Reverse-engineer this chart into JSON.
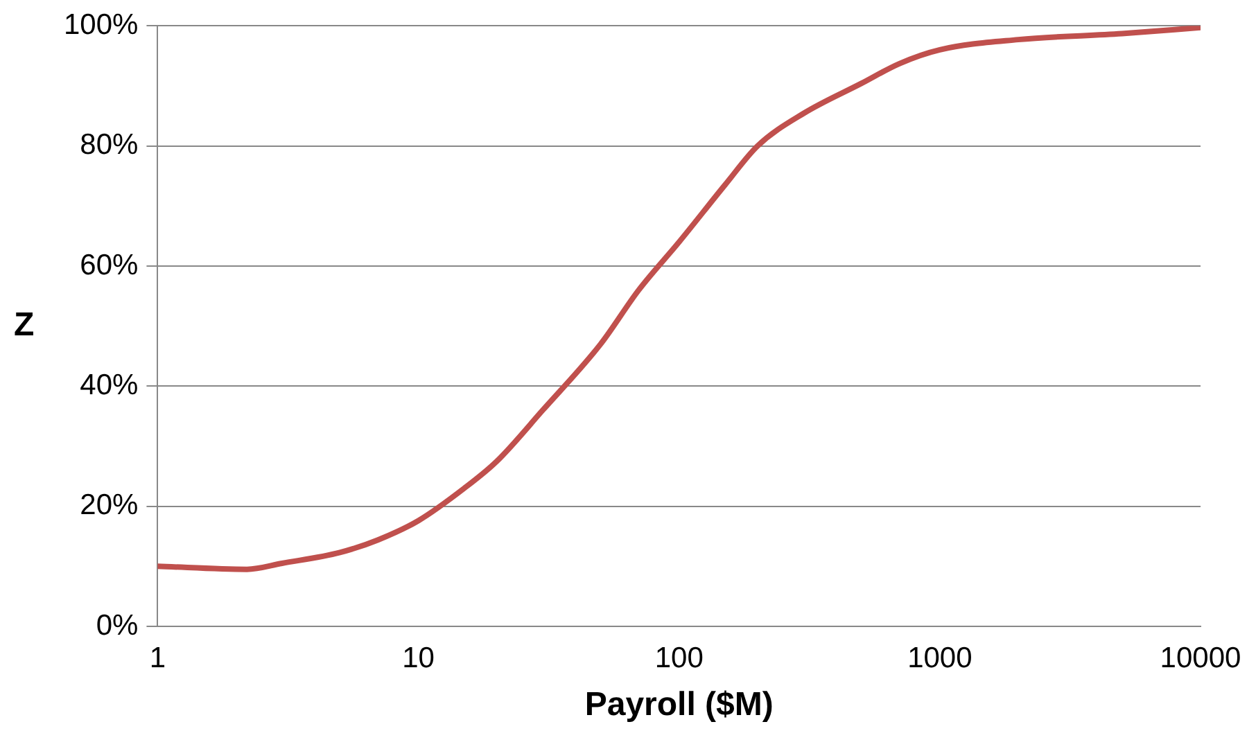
{
  "chart_data": {
    "type": "line",
    "xlabel": "Payroll ($M)",
    "ylabel": "Z",
    "log": "x",
    "x": [
      1,
      2.2,
      3,
      5,
      7,
      10,
      15,
      20,
      30,
      50,
      70,
      100,
      150,
      200,
      300,
      500,
      700,
      1000,
      2000,
      5000,
      10000
    ],
    "series": [
      {
        "color": "#c0504d",
        "values": [
          10,
          9.5,
          10.5,
          12.3,
          14.4,
          17.6,
          23,
          27.5,
          36,
          47,
          56,
          64,
          73.5,
          80,
          85.4,
          90.4,
          93.7,
          96,
          97.7,
          98.7,
          99.7
        ]
      }
    ],
    "xlim": [
      1,
      10000
    ],
    "xticks": [
      1,
      10,
      100,
      1000,
      10000
    ],
    "ylim": [
      0,
      100
    ],
    "yticks": [
      {
        "value": 0,
        "label": "0%"
      },
      {
        "value": 20,
        "label": "20%"
      },
      {
        "value": 40,
        "label": "40%"
      },
      {
        "value": 60,
        "label": "60%"
      },
      {
        "value": 80,
        "label": "80%"
      },
      {
        "value": 100,
        "label": "100%"
      }
    ],
    "grid": "y",
    "legend": false,
    "marker": "none",
    "line_style": "solid"
  }
}
